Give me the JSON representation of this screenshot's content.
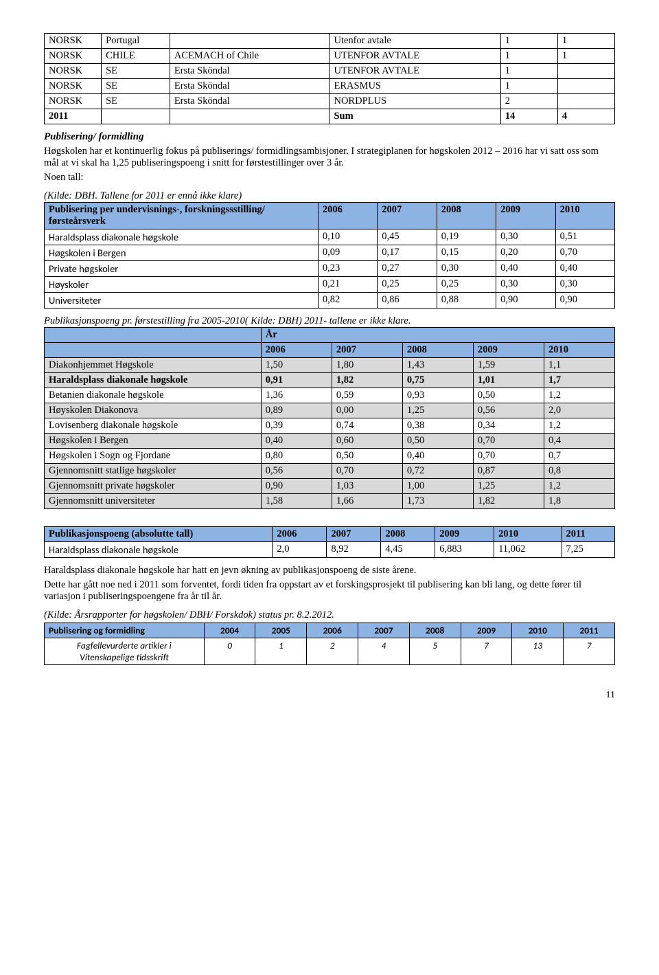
{
  "exchange": {
    "rows": [
      [
        "NORSK",
        "Portugal",
        "",
        "Utenfor avtale",
        "1",
        "1"
      ],
      [
        "NORSK",
        "CHILE",
        "ACEMACH of Chile",
        "UTENFOR AVTALE",
        "1",
        "1"
      ],
      [
        "NORSK",
        "SE",
        "Ersta Sköndal",
        "UTENFOR AVTALE",
        "1",
        ""
      ],
      [
        "NORSK",
        "SE",
        "Ersta Sköndal",
        "ERASMUS",
        "1",
        ""
      ],
      [
        "NORSK",
        "SE",
        "Ersta Sköndal",
        "NORDPLUS",
        "2",
        ""
      ],
      [
        "2011",
        "",
        "",
        "Sum",
        "14",
        "4"
      ]
    ]
  },
  "section1": {
    "heading": "Publisering/ formidling",
    "para1": "Høgskolen har et kontinuerlig fokus på publiserings/ formidlingsambisjoner. I strategiplanen for høgskolen 2012 – 2016 har vi satt oss som mål at vi skal ha 1,25 publiseringspoeng i snitt for førstestillinger over 3 år.",
    "para2": "Noen tall:",
    "kilde": "(Kilde: DBH. Tallene for 2011 er ennå ikke klare)"
  },
  "table2": {
    "head": [
      "Publisering per undervisnings-, forskningssstilling/ førsteårsverk",
      "2006",
      "2007",
      "2008",
      "2009",
      "2010"
    ],
    "rows": [
      {
        "label": "Haraldsplass diakonale høgskole",
        "font": "calibri",
        "vals": [
          "0,10",
          "0,45",
          "0,19",
          "0,30",
          "0,51"
        ]
      },
      {
        "label": "Høgskolen i Bergen",
        "font": "calibri",
        "vals": [
          "0,09",
          "0,17",
          "0,15",
          "0,20",
          "0,70"
        ]
      },
      {
        "label": "Private høgskoler",
        "font": "calibri",
        "vals": [
          "0,23",
          "0,27",
          "0,30",
          "0,40",
          "0,40"
        ]
      },
      {
        "label": "Høyskoler",
        "font": "calibri",
        "vals": [
          "0,21",
          "0,25",
          "0,25",
          "0,30",
          "0,30"
        ]
      },
      {
        "label": "Universiteter",
        "font": "calibri",
        "vals": [
          "0,82",
          "0,86",
          "0,88",
          "0,90",
          "0,90"
        ]
      }
    ]
  },
  "table3": {
    "caption": "Publikasjonspoeng pr. førstestilling fra 2005-2010( Kilde: DBH) 2011- tallene er ikke klare.",
    "year_label": "År",
    "years": [
      "2006",
      "2007",
      "2008",
      "2009",
      "2010"
    ],
    "rows": [
      {
        "label": "Diakonhjemmet Høgskole",
        "grey": true,
        "bold": false,
        "vals": [
          "1,50",
          "1,80",
          "1,43",
          "1,59",
          "1,1"
        ]
      },
      {
        "label": "Haraldsplass diakonale høgskole",
        "grey": true,
        "bold": true,
        "vals": [
          "0,91",
          "1,82",
          "0,75",
          "1,01",
          "1,7"
        ]
      },
      {
        "label": "Betanien diakonale høgskole",
        "grey": false,
        "bold": false,
        "vals": [
          "1,36",
          "0,59",
          "0,93",
          "0,50",
          "1,2"
        ]
      },
      {
        "label": "Høyskolen Diakonova",
        "grey": true,
        "bold": false,
        "vals": [
          "0,89",
          "0,00",
          "1,25",
          "0,56",
          "2,0"
        ]
      },
      {
        "label": "Lovisenberg diakonale høgskole",
        "grey": false,
        "bold": false,
        "vals": [
          "0,39",
          "0,74",
          "0,38",
          "0,34",
          "1,2"
        ]
      },
      {
        "label": "Høgskolen i Bergen",
        "grey": true,
        "bold": false,
        "vals": [
          "0,40",
          "0,60",
          "0,50",
          "0,70",
          "0,4"
        ]
      },
      {
        "label": "Høgskolen i Sogn og Fjordane",
        "grey": false,
        "bold": false,
        "vals": [
          "0,80",
          "0,50",
          "0,40",
          "0,70",
          "0,7"
        ]
      },
      {
        "label": "Gjennomsnitt statlige høgskoler",
        "grey": true,
        "bold": false,
        "vals": [
          "0,56",
          "0,70",
          "0,72",
          "0,87",
          "0,8"
        ]
      },
      {
        "label": "Gjennomsnitt private høgskoler",
        "grey": true,
        "bold": false,
        "vals": [
          "0,90",
          "1,03",
          "1,00",
          "1,25",
          "1,2"
        ]
      },
      {
        "label": "Gjennomsnitt universiteter",
        "grey": true,
        "bold": false,
        "vals": [
          "1,58",
          "1,66",
          "1,73",
          "1,82",
          "1,8"
        ]
      }
    ]
  },
  "table4": {
    "head": [
      "Publikasjonspoeng (absolutte tall)",
      "2006",
      "2007",
      "2008",
      "2009",
      "2010",
      "2011"
    ],
    "row_label": "Haraldsplass diakonale høgskole",
    "row_vals": [
      "2,0",
      "8,92",
      "4,45",
      "6,883",
      "11,062",
      "7,25"
    ]
  },
  "section2": {
    "para1": "Haraldsplass diakonale høgskole har hatt en jevn økning av publikasjonspoeng de siste årene.",
    "para2": "Dette har gått noe ned i 2011 som forventet, fordi tiden fra oppstart av et forskingsprosjekt til publisering kan bli lang, og dette fører til variasjon i publiseringspoengene fra år til år.",
    "kilde": "(Kilde: Årsrapporter for høgskolen/ DBH/ Forskdok) status pr. 8.2.2012."
  },
  "table5": {
    "head": [
      "Publisering og formidling",
      "2004",
      "2005",
      "2006",
      "2007",
      "2008",
      "2009",
      "2010",
      "2011"
    ],
    "row_label": "Fagfellevurderte artikler i Vitenskapelige tidsskrift",
    "row_vals": [
      "0",
      "1",
      "2",
      "4",
      "5",
      "7",
      "13",
      "7"
    ]
  },
  "page_number": "11"
}
